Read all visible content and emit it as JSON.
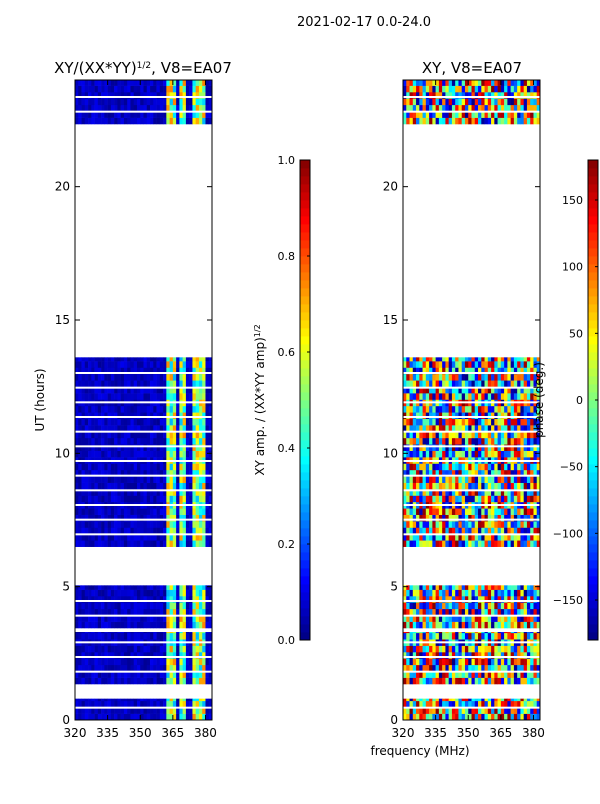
{
  "figure": {
    "suptitle": "2021-02-17 0.0-24.0",
    "xlabel": "frequency (MHz)"
  },
  "colors": {
    "jet": [
      "#00007f",
      "#0000ff",
      "#007fff",
      "#00ffff",
      "#7fff7f",
      "#ffff00",
      "#ff7f00",
      "#ff0000",
      "#7f0000"
    ],
    "bg": "#ffffff"
  },
  "chart_data": [
    {
      "type": "heatmap",
      "title": "XY/(XX*YY)^1/2, V8=EA07",
      "title_main": "XY/(XX*YY)",
      "title_sup": "1/2",
      "title_tail": ", V8=EA07",
      "xlabel": "frequency (MHz)",
      "ylabel": "UT (hours)",
      "xlim": [
        320,
        383
      ],
      "ylim": [
        0,
        24
      ],
      "xticks": [
        320,
        335,
        350,
        365,
        380
      ],
      "xtick_labels": [
        "320",
        "335",
        "350",
        "365",
        "380"
      ],
      "yticks": [
        0,
        5,
        10,
        15,
        20
      ],
      "ytick_labels": [
        "0",
        "5",
        "10",
        "15",
        "20"
      ],
      "colorbar": {
        "label": "XY amp. / (XX*YY amp)^1/2",
        "label_main": "XY amp. / (XX*YY amp)",
        "label_sup": "1/2",
        "range": [
          0.0,
          1.0
        ],
        "ticks": [
          0.0,
          0.2,
          0.4,
          0.6,
          0.8,
          1.0
        ],
        "tick_labels": [
          "0.0",
          "0.2",
          "0.4",
          "0.6",
          "0.8",
          "1.0"
        ]
      },
      "data_time_ranges_hours": [
        [
          0.0,
          0.8
        ],
        [
          1.35,
          3.3
        ],
        [
          3.45,
          5.05
        ],
        [
          6.5,
          13.6
        ],
        [
          22.35,
          24.0
        ]
      ],
      "hot_channels_mhz": [
        [
          362.5,
          366.0
        ],
        [
          367.5,
          370.5
        ],
        [
          374.0,
          375.5
        ],
        [
          376.0,
          379.5
        ]
      ],
      "typical_value_background": 0.05,
      "typical_value_hot_channels": 0.5
    },
    {
      "type": "heatmap",
      "title": "XY, V8=EA07",
      "xlabel": "frequency (MHz)",
      "ylabel": "",
      "xlim": [
        320,
        383
      ],
      "ylim": [
        0,
        24
      ],
      "xticks": [
        320,
        335,
        350,
        365,
        380
      ],
      "xtick_labels": [
        "320",
        "335",
        "350",
        "365",
        "380"
      ],
      "yticks": [
        0,
        5,
        10,
        15,
        20
      ],
      "ytick_labels": [
        "0",
        "5",
        "10",
        "15",
        "20"
      ],
      "colorbar": {
        "label": "phase (deg.)",
        "range": [
          -180,
          180
        ],
        "ticks": [
          -150,
          -100,
          -50,
          0,
          50,
          100,
          150
        ],
        "tick_labels": [
          "−150",
          "−100",
          "−50",
          "0",
          "50",
          "100",
          "150"
        ]
      },
      "data_time_ranges_hours": [
        [
          0.0,
          0.8
        ],
        [
          1.35,
          3.3
        ],
        [
          3.45,
          5.05
        ],
        [
          6.5,
          13.6
        ],
        [
          22.35,
          24.0
        ]
      ],
      "value_note": "phase scattered across full range"
    }
  ]
}
